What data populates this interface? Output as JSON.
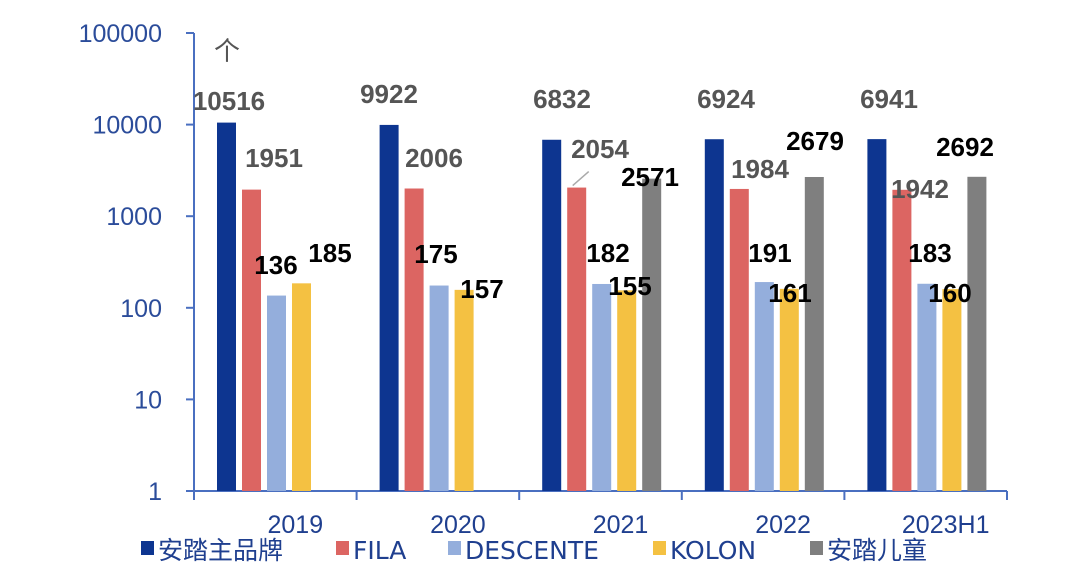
{
  "chart_data": {
    "type": "bar",
    "title": "",
    "xlabel": "",
    "ylabel": "",
    "unit_label": "个",
    "yscale": "log",
    "ylim": [
      1,
      100000
    ],
    "yticks": [
      "1",
      "10",
      "100",
      "1000",
      "10000",
      "100000"
    ],
    "categories": [
      "2019",
      "2020",
      "2021",
      "2022",
      "2023H1"
    ],
    "legend_position": "bottom",
    "series": [
      {
        "name": "安踏主品牌",
        "color": "#0d3590",
        "label_color": "#555555",
        "values": [
          10516,
          9922,
          6832,
          6924,
          6941
        ]
      },
      {
        "name": "FILA",
        "color": "#dc6562",
        "label_color": "#555555",
        "values": [
          1951,
          2006,
          2054,
          1984,
          1942
        ]
      },
      {
        "name": "DESCENTE",
        "color": "#94aedc",
        "label_color": "#000000",
        "values": [
          136,
          175,
          182,
          191,
          183
        ]
      },
      {
        "name": "KOLON",
        "color": "#f4c142",
        "label_color": "#000000",
        "values": [
          185,
          157,
          155,
          161,
          160
        ]
      },
      {
        "name": "安踏儿童",
        "color": "#7f7f7f",
        "label_color": "#000000",
        "values": [
          null,
          null,
          2571,
          2679,
          2692
        ]
      }
    ]
  }
}
